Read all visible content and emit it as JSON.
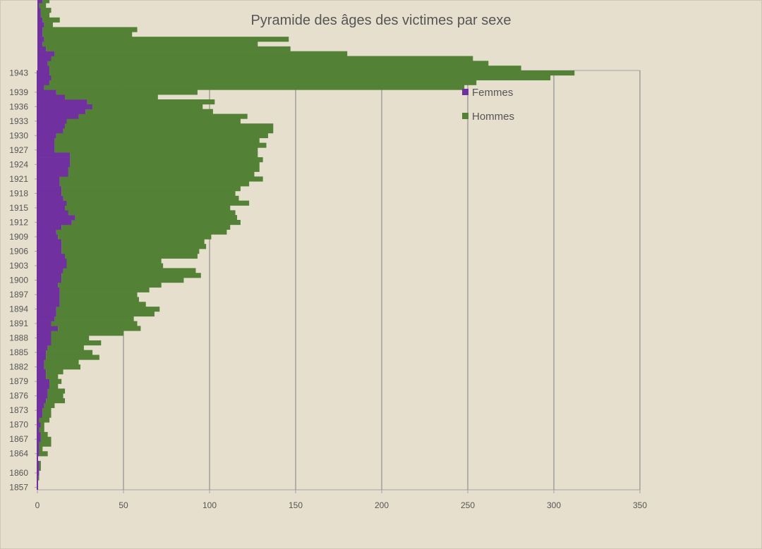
{
  "chart_data": {
    "type": "bar",
    "orientation": "horizontal",
    "stacked": true,
    "title": "Pyramide des âges des victimes par sexe",
    "y_tick_labels": [
      "1943",
      "1939",
      "1936",
      "1933",
      "1930",
      "1927",
      "1924",
      "1921",
      "1918",
      "1915",
      "1912",
      "1909",
      "1906",
      "1903",
      "1900",
      "1897",
      "1894",
      "1891",
      "1888",
      "1885",
      "1882",
      "1879",
      "1876",
      "1873",
      "1870",
      "1867",
      "1864",
      "1860",
      "1857"
    ],
    "x_tick_labels": [
      "0",
      "50",
      "100",
      "150",
      "200",
      "250",
      "300",
      "350"
    ],
    "xlim": [
      0,
      350
    ],
    "grid": true,
    "legend_position": "top-right",
    "legend_bold_prefix": "Femmes",
    "colors": {
      "femmes": "#7030a0",
      "hommes": "#538135"
    },
    "series": [
      {
        "name": "Femmes",
        "start_year": 1857,
        "values": [
          0,
          0,
          0,
          1,
          1,
          1,
          0,
          1,
          1,
          1,
          2,
          2,
          1,
          2,
          1,
          3,
          3,
          4,
          5,
          6,
          6,
          7,
          7,
          5,
          5,
          4,
          4,
          5,
          5,
          6,
          8,
          8,
          8,
          12,
          8,
          10,
          11,
          11,
          13,
          13,
          13,
          13,
          12,
          14,
          14,
          15,
          17,
          17,
          16,
          14,
          14,
          14,
          12,
          11,
          14,
          20,
          22,
          18,
          16,
          17,
          15,
          14,
          14,
          13,
          13,
          18,
          18,
          19,
          19,
          19,
          10,
          10,
          10,
          11,
          15,
          16,
          17,
          24,
          28,
          32,
          29,
          16,
          11,
          4,
          7,
          8,
          7,
          7,
          6,
          8,
          10,
          5,
          3,
          4,
          3,
          3,
          4,
          3,
          2,
          2,
          1,
          3,
          0,
          0,
          0,
          0,
          0,
          0,
          0,
          0,
          0
        ]
      },
      {
        "name": "Hommes",
        "start_year": 1857,
        "values": [
          0,
          0,
          1,
          0,
          1,
          1,
          0,
          5,
          2,
          7,
          6,
          4,
          3,
          2,
          6,
          5,
          5,
          6,
          11,
          9,
          10,
          5,
          7,
          7,
          10,
          21,
          20,
          31,
          27,
          21,
          29,
          22,
          42,
          48,
          50,
          46,
          57,
          60,
          50,
          46,
          45,
          52,
          60,
          71,
          81,
          77,
          56,
          55,
          77,
          80,
          84,
          83,
          89,
          99,
          98,
          98,
          94,
          97,
          96,
          106,
          102,
          101,
          104,
          110,
          118,
          108,
          111,
          110,
          112,
          109,
          118,
          123,
          119,
          123,
          122,
          121,
          101,
          98,
          74,
          64,
          74,
          54,
          82,
          244,
          248,
          290,
          305,
          274,
          256,
          245,
          170,
          142,
          125,
          142,
          52,
          55,
          5,
          10,
          5,
          6,
          4,
          4,
          2,
          1,
          3,
          3,
          0,
          0,
          0,
          0,
          0
        ]
      }
    ]
  }
}
